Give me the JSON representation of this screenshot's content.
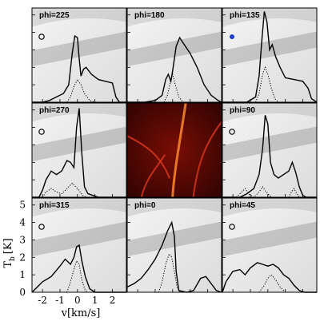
{
  "chart_data": {
    "type": "line",
    "ylabel": "T",
    "ylabel_sub": "b",
    "ylabel_unit": "[K]",
    "xlabel": "v[km/s]",
    "xlim": [
      -2.6,
      2.8
    ],
    "ylim": [
      0,
      5.4
    ],
    "xticks": [
      -2,
      -1,
      0,
      1,
      2
    ],
    "yticks": [
      0,
      1,
      2,
      3,
      4,
      5
    ],
    "grid": false,
    "panels": [
      {
        "label": "phi=225",
        "marker": "open-circle",
        "total": [
          [
            -2.6,
            0
          ],
          [
            -2.0,
            0
          ],
          [
            -1.6,
            0.1
          ],
          [
            -1.2,
            0.3
          ],
          [
            -0.8,
            0.5
          ],
          [
            -0.5,
            1.0
          ],
          [
            -0.3,
            2.8
          ],
          [
            -0.15,
            3.8
          ],
          [
            0.0,
            3.7
          ],
          [
            0.1,
            2.5
          ],
          [
            0.2,
            1.5
          ],
          [
            0.35,
            1.9
          ],
          [
            0.5,
            2.0
          ],
          [
            0.8,
            1.6
          ],
          [
            1.2,
            1.3
          ],
          [
            1.6,
            1.2
          ],
          [
            2.0,
            1.1
          ],
          [
            2.2,
            0.3
          ],
          [
            2.4,
            0
          ],
          [
            2.8,
            0
          ]
        ],
        "dotted": [
          [
            -0.6,
            0
          ],
          [
            -0.4,
            0.3
          ],
          [
            -0.2,
            0.9
          ],
          [
            0.0,
            1.3
          ],
          [
            0.2,
            1.0
          ],
          [
            0.4,
            0.5
          ],
          [
            0.7,
            0.1
          ],
          [
            1.0,
            0
          ]
        ]
      },
      {
        "label": "phi=180",
        "marker": "none",
        "total": [
          [
            -2.6,
            0
          ],
          [
            -1.6,
            0
          ],
          [
            -1.0,
            0.1
          ],
          [
            -0.6,
            0.4
          ],
          [
            -0.4,
            1.3
          ],
          [
            -0.25,
            1.6
          ],
          [
            -0.1,
            1.2
          ],
          [
            0.0,
            1.8
          ],
          [
            0.2,
            3.2
          ],
          [
            0.4,
            3.7
          ],
          [
            0.6,
            3.4
          ],
          [
            1.0,
            2.8
          ],
          [
            1.4,
            2.0
          ],
          [
            1.8,
            1.0
          ],
          [
            2.2,
            0.4
          ],
          [
            2.6,
            0.1
          ],
          [
            2.8,
            0
          ]
        ],
        "dotted": [
          [
            -0.5,
            0
          ],
          [
            -0.3,
            0.4
          ],
          [
            -0.1,
            1.3
          ],
          [
            0.0,
            1.6
          ],
          [
            0.15,
            1.0
          ],
          [
            0.35,
            0.3
          ],
          [
            0.6,
            0
          ]
        ]
      },
      {
        "label": "phi=135",
        "marker": "filled-circle",
        "total": [
          [
            -2.6,
            0
          ],
          [
            -1.2,
            0
          ],
          [
            -0.7,
            0.3
          ],
          [
            -0.5,
            1.5
          ],
          [
            -0.35,
            3.5
          ],
          [
            -0.2,
            5.2
          ],
          [
            -0.05,
            4.6
          ],
          [
            0.1,
            3.0
          ],
          [
            0.25,
            3.3
          ],
          [
            0.45,
            2.6
          ],
          [
            0.7,
            2.0
          ],
          [
            1.0,
            1.4
          ],
          [
            1.5,
            1.3
          ],
          [
            2.0,
            1.2
          ],
          [
            2.3,
            0.8
          ],
          [
            2.5,
            0.2
          ],
          [
            2.8,
            0
          ]
        ],
        "dotted": [
          [
            -0.7,
            0
          ],
          [
            -0.5,
            0.5
          ],
          [
            -0.3,
            1.6
          ],
          [
            -0.15,
            2.0
          ],
          [
            0.0,
            1.6
          ],
          [
            0.2,
            0.8
          ],
          [
            0.4,
            0.2
          ],
          [
            0.6,
            0
          ]
        ]
      },
      {
        "label": "phi=270",
        "marker": "open-circle",
        "total": [
          [
            -2.6,
            0
          ],
          [
            -2.2,
            0
          ],
          [
            -2.0,
            0.4
          ],
          [
            -1.8,
            1.0
          ],
          [
            -1.5,
            1.5
          ],
          [
            -1.2,
            1.3
          ],
          [
            -0.9,
            1.5
          ],
          [
            -0.6,
            2.1
          ],
          [
            -0.4,
            2.0
          ],
          [
            -0.2,
            1.7
          ],
          [
            -0.05,
            4.0
          ],
          [
            0.1,
            5.1
          ],
          [
            0.25,
            2.5
          ],
          [
            0.4,
            0.6
          ],
          [
            0.6,
            0.2
          ],
          [
            0.9,
            0.1
          ],
          [
            1.2,
            0
          ],
          [
            2.8,
            0
          ]
        ],
        "dotted": [
          [
            -2.0,
            0
          ],
          [
            -1.8,
            0.3
          ],
          [
            -1.5,
            0.5
          ],
          [
            -1.2,
            0.3
          ],
          [
            -0.9,
            0.2
          ],
          [
            -0.6,
            0.5
          ],
          [
            -0.3,
            0.8
          ],
          [
            0.0,
            0.5
          ],
          [
            0.3,
            0.1
          ],
          [
            0.5,
            0
          ]
        ]
      },
      {
        "label": "phi=90",
        "marker": "open-circle",
        "total": [
          [
            -2.6,
            0
          ],
          [
            -1.6,
            0
          ],
          [
            -1.2,
            0.2
          ],
          [
            -0.8,
            0.5
          ],
          [
            -0.5,
            1.3
          ],
          [
            -0.3,
            2.8
          ],
          [
            -0.15,
            4.7
          ],
          [
            0.0,
            4.2
          ],
          [
            0.15,
            2.0
          ],
          [
            0.35,
            1.3
          ],
          [
            0.6,
            1.1
          ],
          [
            0.9,
            1.3
          ],
          [
            1.2,
            1.5
          ],
          [
            1.4,
            2.0
          ],
          [
            1.6,
            1.4
          ],
          [
            1.8,
            0.6
          ],
          [
            2.0,
            0.1
          ],
          [
            2.2,
            0
          ],
          [
            2.8,
            0
          ]
        ],
        "dotted": [
          [
            -1.8,
            0
          ],
          [
            -1.5,
            0.3
          ],
          [
            -1.3,
            0.5
          ],
          [
            -1.1,
            0.2
          ],
          [
            -0.8,
            0
          ],
          [
            -0.5,
            0.3
          ],
          [
            -0.3,
            0.6
          ],
          [
            -0.1,
            0.3
          ],
          [
            0.2,
            0
          ],
          [
            1.2,
            0
          ],
          [
            1.35,
            0.3
          ],
          [
            1.5,
            0.5
          ],
          [
            1.65,
            0.2
          ],
          [
            1.8,
            0
          ]
        ]
      },
      {
        "label": "phi=315",
        "marker": "open-circle",
        "total": [
          [
            -2.6,
            0
          ],
          [
            -2.4,
            0.2
          ],
          [
            -2.0,
            0.6
          ],
          [
            -1.5,
            0.9
          ],
          [
            -1.0,
            1.5
          ],
          [
            -0.7,
            1.9
          ],
          [
            -0.4,
            1.6
          ],
          [
            -0.2,
            2.0
          ],
          [
            -0.05,
            2.6
          ],
          [
            0.1,
            2.7
          ],
          [
            0.25,
            1.8
          ],
          [
            0.45,
            0.9
          ],
          [
            0.7,
            0.2
          ],
          [
            1.0,
            0
          ],
          [
            2.8,
            0
          ]
        ],
        "dotted": [
          [
            -0.6,
            0
          ],
          [
            -0.4,
            0.6
          ],
          [
            -0.2,
            1.3
          ],
          [
            -0.05,
            1.8
          ],
          [
            0.1,
            1.6
          ],
          [
            0.25,
            0.7
          ],
          [
            0.45,
            0.1
          ],
          [
            0.6,
            0
          ]
        ]
      },
      {
        "label": "phi=0",
        "marker": "none",
        "total": [
          [
            -2.6,
            0.3
          ],
          [
            -2.2,
            0.5
          ],
          [
            -1.8,
            0.8
          ],
          [
            -1.4,
            1.3
          ],
          [
            -1.0,
            1.9
          ],
          [
            -0.6,
            2.7
          ],
          [
            -0.3,
            3.5
          ],
          [
            -0.05,
            4.0
          ],
          [
            0.1,
            3.2
          ],
          [
            0.2,
            1.2
          ],
          [
            0.35,
            0.1
          ],
          [
            0.8,
            0
          ],
          [
            1.2,
            0.1
          ],
          [
            1.6,
            0.8
          ],
          [
            1.9,
            0.9
          ],
          [
            2.2,
            0.5
          ],
          [
            2.5,
            0.1
          ],
          [
            2.8,
            0
          ]
        ],
        "dotted": [
          [
            -0.8,
            0
          ],
          [
            -0.6,
            0.6
          ],
          [
            -0.4,
            1.6
          ],
          [
            -0.2,
            2.2
          ],
          [
            -0.05,
            2.0
          ],
          [
            0.1,
            1.2
          ],
          [
            0.25,
            0.3
          ],
          [
            0.45,
            0
          ]
        ]
      },
      {
        "label": "phi=45",
        "marker": "open-circle",
        "total": [
          [
            -2.6,
            0
          ],
          [
            -2.4,
            0.6
          ],
          [
            -2.0,
            1.2
          ],
          [
            -1.6,
            1.3
          ],
          [
            -1.3,
            1.0
          ],
          [
            -1.0,
            1.4
          ],
          [
            -0.6,
            1.7
          ],
          [
            -0.3,
            1.6
          ],
          [
            0.0,
            1.5
          ],
          [
            0.3,
            1.6
          ],
          [
            0.6,
            1.4
          ],
          [
            0.9,
            1.0
          ],
          [
            1.2,
            0.8
          ],
          [
            1.5,
            0.4
          ],
          [
            1.8,
            0.1
          ],
          [
            2.1,
            0
          ],
          [
            2.8,
            0
          ]
        ],
        "dotted": [
          [
            -0.5,
            0
          ],
          [
            -0.2,
            0.4
          ],
          [
            0.0,
            0.8
          ],
          [
            0.2,
            1.0
          ],
          [
            0.45,
            0.7
          ],
          [
            0.7,
            0.3
          ],
          [
            1.0,
            0
          ]
        ]
      }
    ]
  },
  "colors": {
    "total": "#000000",
    "dotted": "#000000",
    "marker_filled": "#1f3ccf",
    "background_dust": "#555555",
    "center_map": "#a3140a"
  }
}
